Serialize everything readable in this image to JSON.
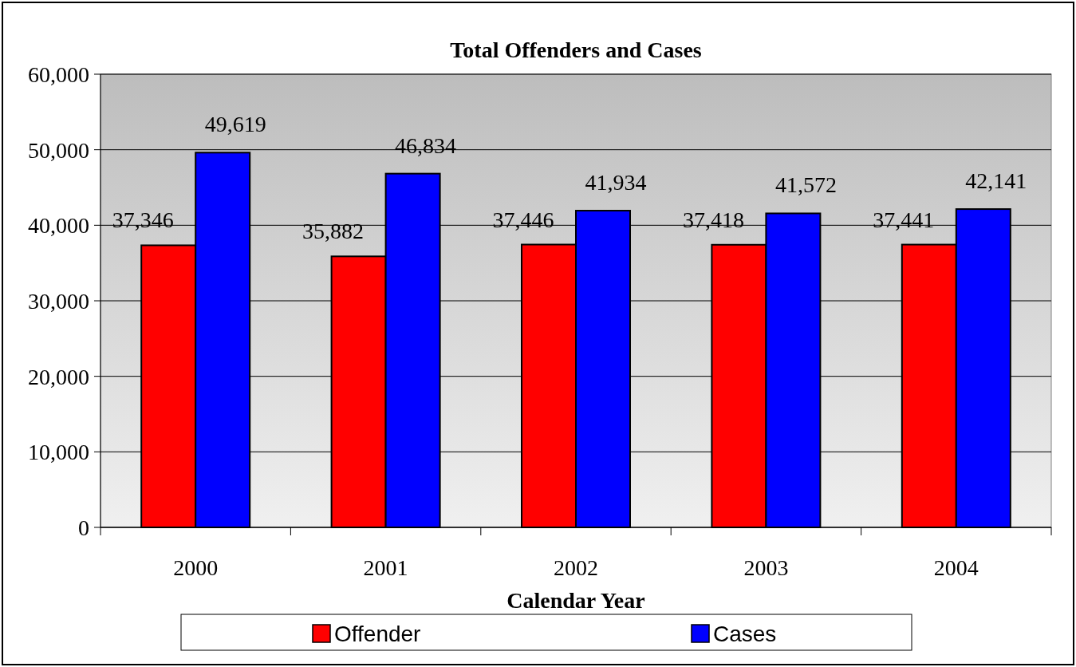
{
  "chart_data": {
    "type": "bar",
    "title": "Total Offenders and Cases",
    "xlabel": "Calendar Year",
    "categories": [
      "2000",
      "2001",
      "2002",
      "2003",
      "2004"
    ],
    "series": [
      {
        "name": "Offender",
        "color": "#ff0000",
        "values": [
          37346,
          35882,
          37446,
          37418,
          37441
        ],
        "value_labels": [
          "37,346",
          "35,882",
          "37,446",
          "37,418",
          "37,441"
        ]
      },
      {
        "name": "Cases",
        "color": "#0000ff",
        "values": [
          49619,
          46834,
          41934,
          41572,
          42141
        ],
        "value_labels": [
          "49,619",
          "46,834",
          "41,934",
          "41,572",
          "42,141"
        ]
      }
    ],
    "ylim": [
      0,
      60000
    ],
    "yticks": [
      {
        "value": 0,
        "label": "0"
      },
      {
        "value": 10000,
        "label": "10,000"
      },
      {
        "value": 20000,
        "label": "20,000"
      },
      {
        "value": 30000,
        "label": "30,000"
      },
      {
        "value": 40000,
        "label": "40,000"
      },
      {
        "value": 50000,
        "label": "50,000"
      },
      {
        "value": 60000,
        "label": "60,000"
      }
    ],
    "grid": "y",
    "legend": "bottom"
  }
}
